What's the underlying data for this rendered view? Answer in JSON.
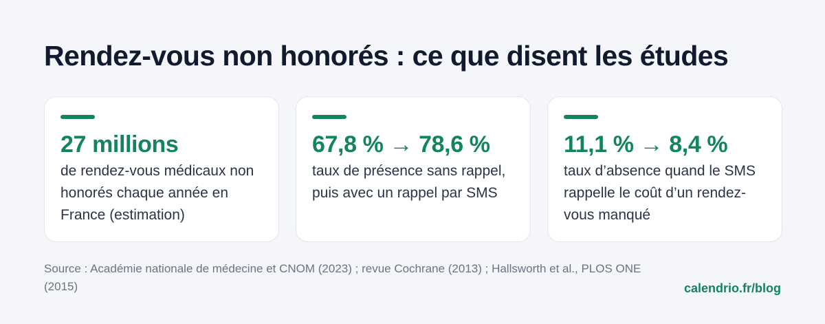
{
  "header": {
    "title": "Rendez-vous non honorés : ce que disent les études"
  },
  "cards": [
    {
      "stat": "27 millions",
      "description": "de rendez-vous médicaux non honorés chaque année en France (estimation)"
    },
    {
      "stat": "67,8 % → 78,6 %",
      "description": "taux de présence sans rappel, puis avec un rappel par SMS"
    },
    {
      "stat": "11,1 % → 8,4 %",
      "description": "taux d’absence quand le SMS rappelle le coût d’un rendez-vous manqué"
    }
  ],
  "footer": {
    "source": "Source : Académie nationale de médecine et CNOM (2023) ; revue Cochrane (2013) ; Hallsworth et al., PLOS ONE (2015)",
    "link": "calendrio.fr/blog"
  },
  "colors": {
    "accent": "#13845e",
    "background": "#f4f6f9",
    "title": "#111a2e"
  }
}
